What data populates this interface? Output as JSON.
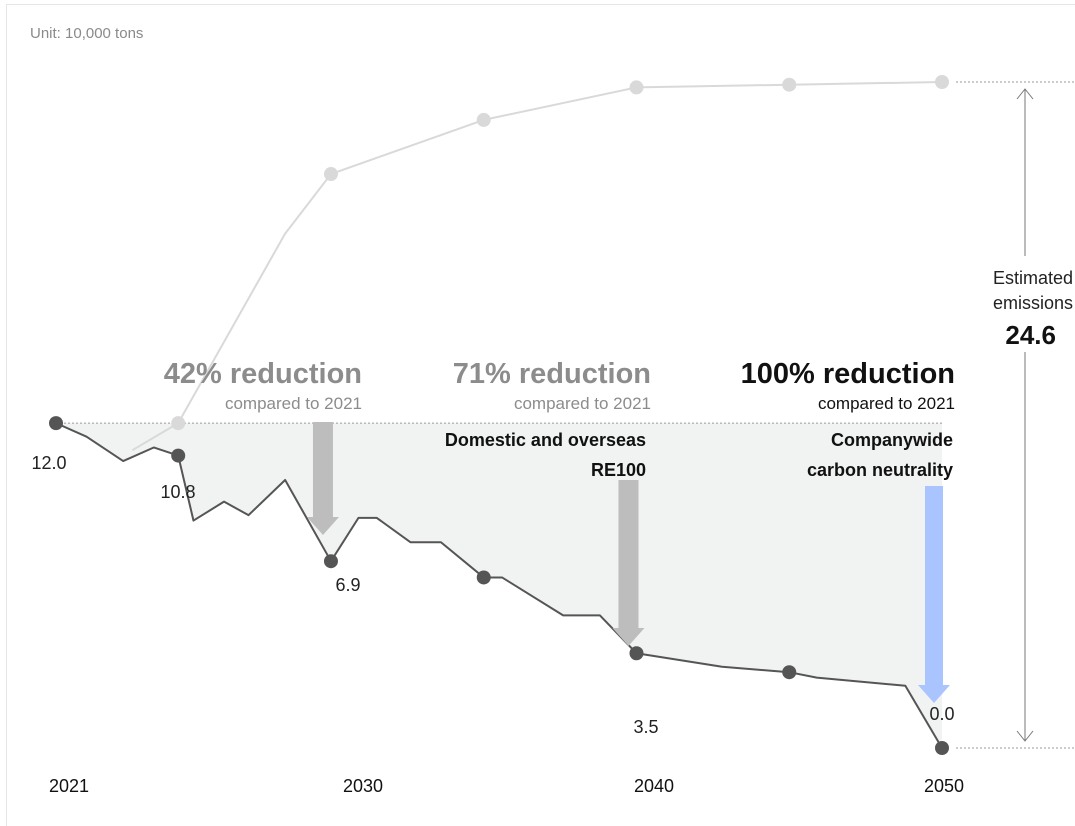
{
  "chart_data": {
    "type": "line",
    "unit_label": "Unit: 10,000 tons",
    "x_ticks": [
      "2021",
      "2030",
      "2040",
      "2050"
    ],
    "xlim": [
      2020.85,
      2050.2
    ],
    "ylim": [
      0,
      24.6
    ],
    "series": [
      {
        "role": "estimated_emissions",
        "color": "#d9d9d9",
        "points": [
          {
            "x": 2023.5,
            "y": 11.0
          },
          {
            "x": 2025,
            "y": 12.0
          },
          {
            "x": 2028.5,
            "y": 19.0
          },
          {
            "x": 2030,
            "y": 21.2
          },
          {
            "x": 2035,
            "y": 23.2
          },
          {
            "x": 2040,
            "y": 24.4
          },
          {
            "x": 2045,
            "y": 24.5
          },
          {
            "x": 2050,
            "y": 24.6
          }
        ],
        "markers": [
          2025,
          2030,
          2035,
          2040,
          2045,
          2050
        ]
      },
      {
        "role": "reduction_path",
        "color": "#555555",
        "points": [
          {
            "x": 2021,
            "y": 12.0
          },
          {
            "x": 2022,
            "y": 11.5
          },
          {
            "x": 2023.2,
            "y": 10.6
          },
          {
            "x": 2024.2,
            "y": 11.1
          },
          {
            "x": 2025,
            "y": 10.8
          },
          {
            "x": 2025.5,
            "y": 8.4
          },
          {
            "x": 2026.5,
            "y": 9.1
          },
          {
            "x": 2027.3,
            "y": 8.6
          },
          {
            "x": 2028.5,
            "y": 9.9
          },
          {
            "x": 2030,
            "y": 6.9
          },
          {
            "x": 2030.9,
            "y": 8.5
          },
          {
            "x": 2031.5,
            "y": 8.5
          },
          {
            "x": 2032.6,
            "y": 7.6
          },
          {
            "x": 2033.6,
            "y": 7.6
          },
          {
            "x": 2035,
            "y": 6.3
          },
          {
            "x": 2035.6,
            "y": 6.3
          },
          {
            "x": 2037.6,
            "y": 4.9
          },
          {
            "x": 2038.8,
            "y": 4.9
          },
          {
            "x": 2040,
            "y": 3.5
          },
          {
            "x": 2042.8,
            "y": 3.0
          },
          {
            "x": 2045,
            "y": 2.8
          },
          {
            "x": 2045.9,
            "y": 2.6
          },
          {
            "x": 2048.8,
            "y": 2.3
          },
          {
            "x": 2050,
            "y": 0.0
          }
        ],
        "markers": [
          2021,
          2025,
          2030,
          2035,
          2040,
          2045,
          2050
        ]
      }
    ],
    "data_labels": [
      {
        "x": 2021,
        "y": 12.0,
        "text": "12.0"
      },
      {
        "x": 2025,
        "y": 10.8,
        "text": "10.8"
      },
      {
        "x": 2030,
        "y": 6.9,
        "text": "6.9"
      },
      {
        "x": 2040,
        "y": 3.5,
        "text": "3.5"
      },
      {
        "x": 2050,
        "y": 0.0,
        "text": "0.0"
      }
    ],
    "milestones": [
      {
        "x": 2030,
        "title": "42% reduction",
        "subtitle": "compared to 2021",
        "note": [],
        "color": "#bdbdbd",
        "emphasis": false
      },
      {
        "x": 2040,
        "title": "71% reduction",
        "subtitle": "compared to 2021",
        "note": [
          "Domestic and overseas",
          "RE100"
        ],
        "color": "#bdbdbd",
        "emphasis": false
      },
      {
        "x": 2050,
        "title": "100% reduction",
        "subtitle": "compared to 2021",
        "note": [
          "Companywide",
          "carbon neutrality"
        ],
        "color": "#a9c4ff",
        "emphasis": true
      }
    ],
    "estimate_annotation": {
      "lines": [
        "Estimated",
        "emissions"
      ],
      "value": "24.6"
    },
    "colors": {
      "area_fill": "#f1f2f2",
      "reference_line": "#9a9a9a",
      "marker_dark": "#555555",
      "marker_light": "#d9d9d9"
    }
  }
}
